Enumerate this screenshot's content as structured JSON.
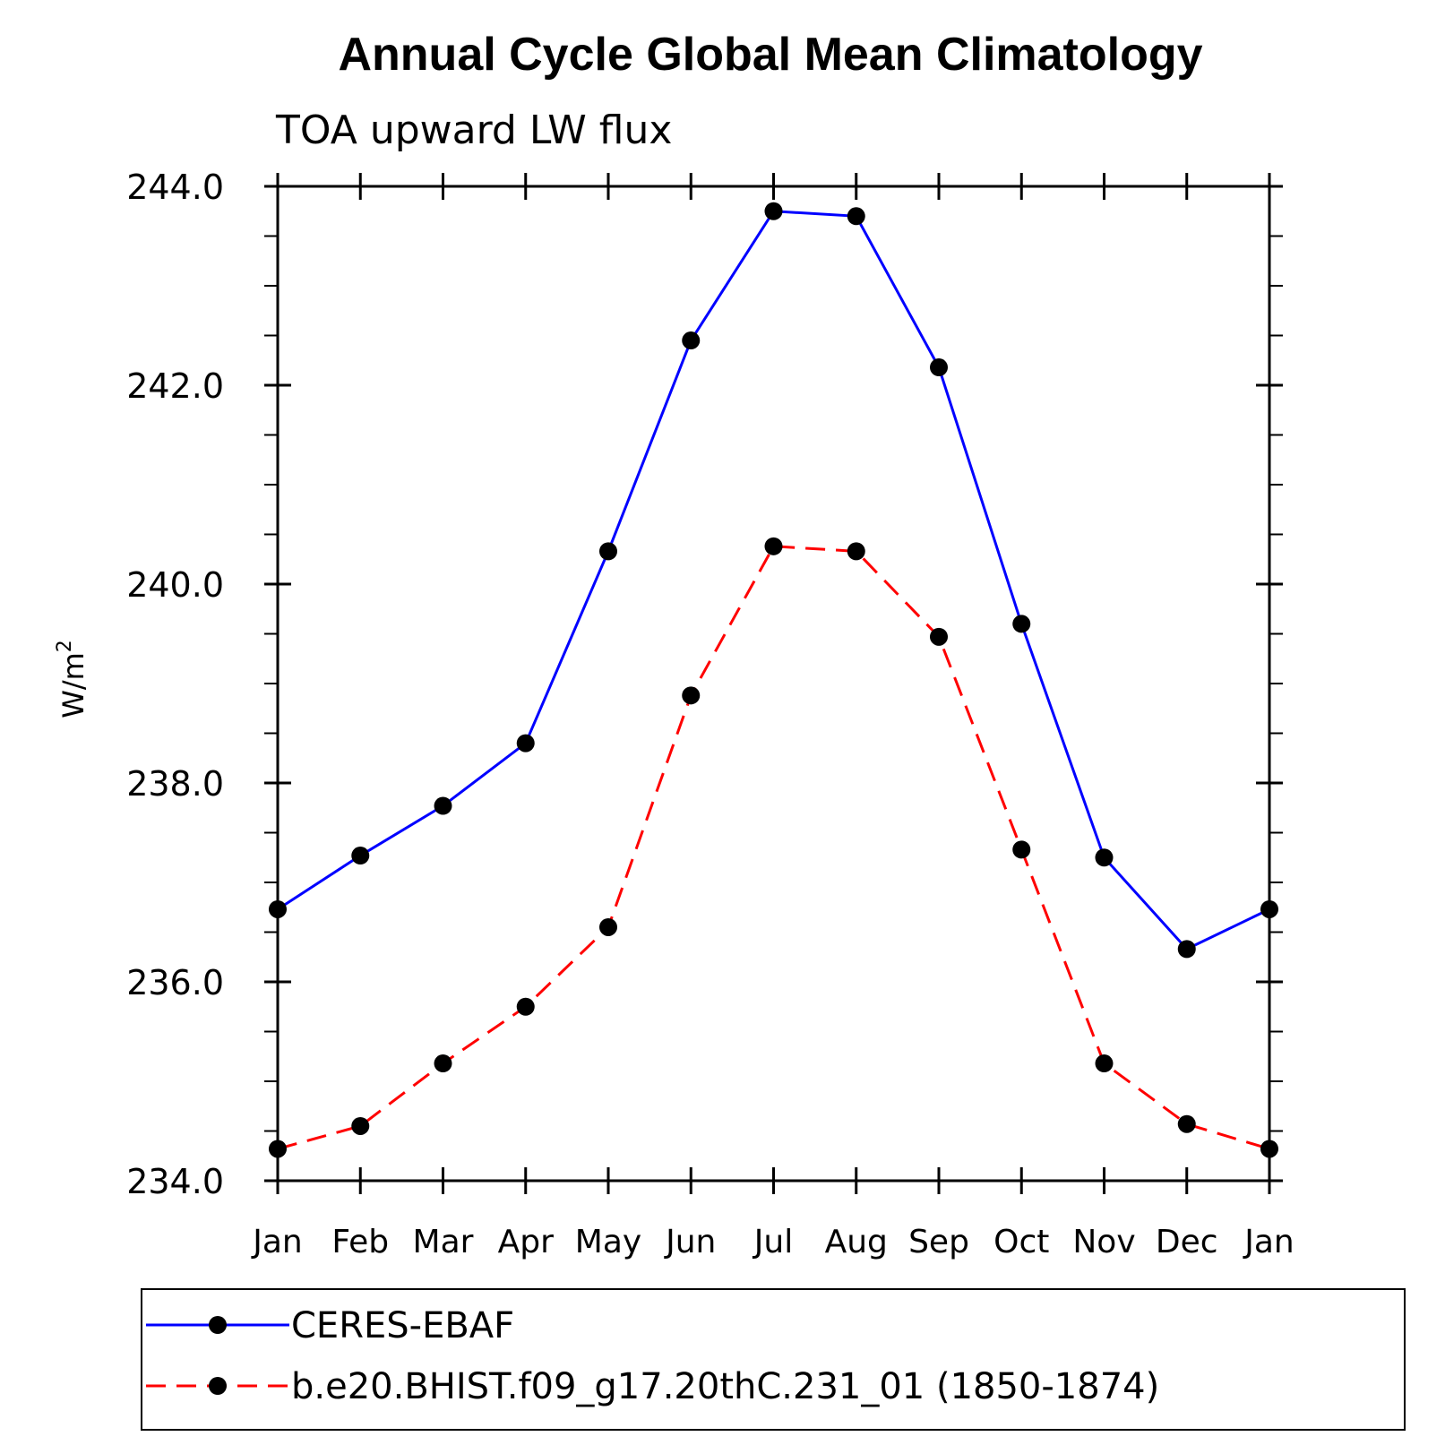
{
  "chart_data": {
    "type": "line",
    "title": "Annual Cycle Global Mean Climatology",
    "subtitle": "TOA upward LW flux",
    "xlabel": "",
    "ylabel": "W/m",
    "ylabel_superscript": "2",
    "ylim": [
      234.0,
      244.0
    ],
    "yticks": [
      "234.0",
      "236.0",
      "238.0",
      "240.0",
      "242.0",
      "244.0"
    ],
    "categories": [
      "Jan",
      "Feb",
      "Mar",
      "Apr",
      "May",
      "Jun",
      "Jul",
      "Aug",
      "Sep",
      "Oct",
      "Nov",
      "Dec",
      "Jan"
    ],
    "grid": false,
    "legend_position": "bottom",
    "series": [
      {
        "name": "CERES-EBAF",
        "color": "#0000ff",
        "style": "solid",
        "marker": "filled-circle",
        "values": [
          236.73,
          237.27,
          237.77,
          238.4,
          240.33,
          242.45,
          243.75,
          243.7,
          242.18,
          239.6,
          237.25,
          236.33,
          236.73
        ]
      },
      {
        "name": "b.e20.BHIST.f09_g17.20thC.231_01 (1850-1874)",
        "color": "#ff0000",
        "style": "dashed",
        "marker": "filled-circle",
        "values": [
          234.32,
          234.55,
          235.18,
          235.75,
          236.55,
          238.88,
          240.38,
          240.33,
          239.47,
          237.33,
          235.18,
          234.57,
          234.32
        ]
      }
    ]
  }
}
